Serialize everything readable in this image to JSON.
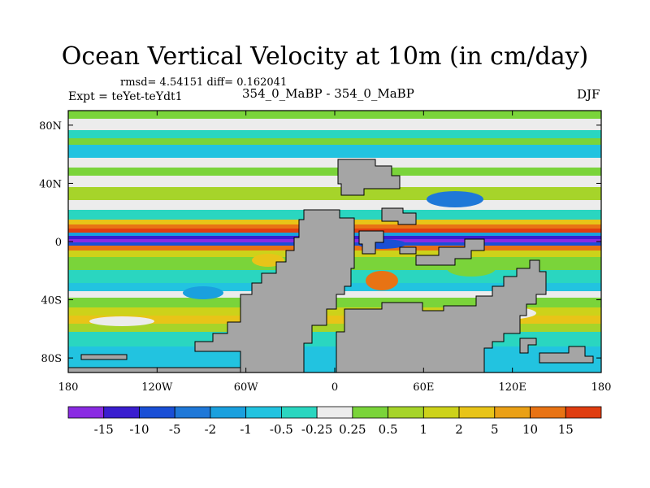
{
  "title": "Ocean Vertical Velocity at 10m (in cm/day)",
  "stats": "rmsd= 4.54151 diff= 0.162041",
  "experiment": "Expt = teYet-teYdt1",
  "case": "354_0_MaBP - 354_0_MaBP",
  "season": "DJF",
  "map": {
    "lat_ticks": [
      {
        "value": 80,
        "label": "80N"
      },
      {
        "value": 40,
        "label": "40N"
      },
      {
        "value": 0,
        "label": "0"
      },
      {
        "value": -40,
        "label": "40S"
      },
      {
        "value": -80,
        "label": "80S"
      }
    ],
    "lon_ticks": [
      {
        "value": -180,
        "label": "180"
      },
      {
        "value": -120,
        "label": "120W"
      },
      {
        "value": -60,
        "label": "60W"
      },
      {
        "value": 0,
        "label": "0"
      },
      {
        "value": 60,
        "label": "60E"
      },
      {
        "value": 120,
        "label": "120E"
      },
      {
        "value": 180,
        "label": "180"
      }
    ],
    "land_color": "#a5a5a5"
  },
  "colorbar": {
    "colors": [
      "#8a2be2",
      "#3a1ecf",
      "#1a4fd6",
      "#1f78d8",
      "#1aa0de",
      "#22c3e0",
      "#2ad6c0",
      "#ececec",
      "#7ad43a",
      "#a6d42a",
      "#cdd21a",
      "#e8c418",
      "#eaa016",
      "#e87314",
      "#e03d10"
    ],
    "labels": [
      "-15",
      "-10",
      "-5",
      "-2",
      "-1",
      "-0.5",
      "-0.25",
      "0.25",
      "0.5",
      "1",
      "2",
      "5",
      "10",
      "15"
    ]
  }
}
